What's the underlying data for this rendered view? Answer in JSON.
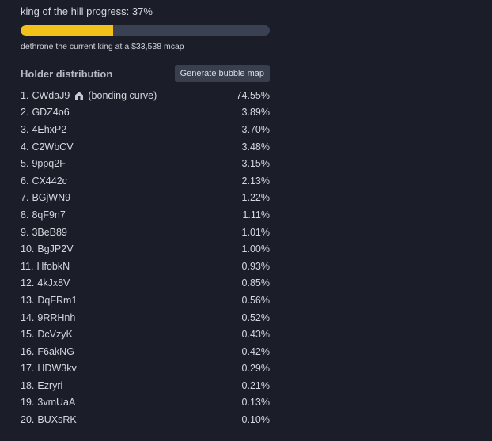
{
  "koth": {
    "title": "king of the hill progress: 37%",
    "progress": 37,
    "subtitle": "dethrone the current king at a $33,538 mcap",
    "bar_fill_color": "#f2c21b",
    "bar_track_color": "#3a4152"
  },
  "holders": {
    "heading": "Holder distribution",
    "bubble_button_label": "Generate bubble map",
    "items": [
      {
        "rank": "1",
        "address": "CWdaJ9",
        "note": "(bonding curve)",
        "icon": "bonding-curve-icon",
        "percent": "74.55%"
      },
      {
        "rank": "2",
        "address": "GDZ4o6",
        "note": "",
        "percent": "3.89%"
      },
      {
        "rank": "3",
        "address": "4EhxP2",
        "note": "",
        "percent": "3.70%"
      },
      {
        "rank": "4",
        "address": "C2WbCV",
        "note": "",
        "percent": "3.48%"
      },
      {
        "rank": "5",
        "address": "9ppq2F",
        "note": "",
        "percent": "3.15%"
      },
      {
        "rank": "6",
        "address": "CX442c",
        "note": "",
        "percent": "2.13%"
      },
      {
        "rank": "7",
        "address": "BGjWN9",
        "note": "",
        "percent": "1.22%"
      },
      {
        "rank": "8",
        "address": "8qF9n7",
        "note": "",
        "percent": "1.11%"
      },
      {
        "rank": "9",
        "address": "3BeB89",
        "note": "",
        "percent": "1.01%"
      },
      {
        "rank": "10",
        "address": "BgJP2V",
        "note": "",
        "percent": "1.00%"
      },
      {
        "rank": "11",
        "address": "HfobkN",
        "note": "",
        "percent": "0.93%"
      },
      {
        "rank": "12",
        "address": "4kJx8V",
        "note": "",
        "percent": "0.85%"
      },
      {
        "rank": "13",
        "address": "DqFRm1",
        "note": "",
        "percent": "0.56%"
      },
      {
        "rank": "14",
        "address": "9RRHnh",
        "note": "",
        "percent": "0.52%"
      },
      {
        "rank": "15",
        "address": "DcVzyK",
        "note": "",
        "percent": "0.43%"
      },
      {
        "rank": "16",
        "address": "F6akNG",
        "note": "",
        "percent": "0.42%"
      },
      {
        "rank": "17",
        "address": "HDW3kv",
        "note": "",
        "percent": "0.29%"
      },
      {
        "rank": "18",
        "address": "Ezryri",
        "note": "",
        "percent": "0.21%"
      },
      {
        "rank": "19",
        "address": "3vmUaA",
        "note": "",
        "percent": "0.13%"
      },
      {
        "rank": "20",
        "address": "BUXsRK",
        "note": "",
        "percent": "0.10%"
      }
    ]
  }
}
